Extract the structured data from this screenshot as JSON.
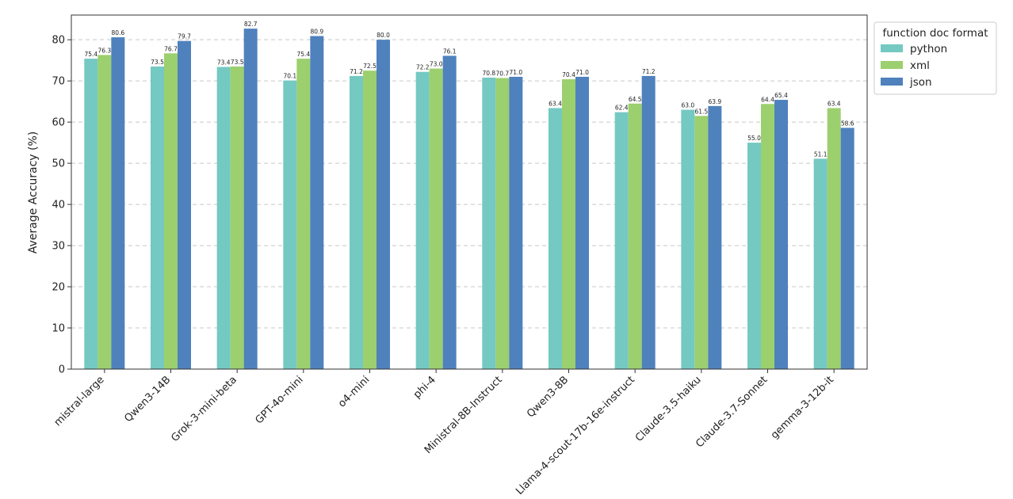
{
  "chart_data": {
    "type": "bar",
    "ylabel": "Average Accuracy (%)",
    "ylim": [
      0,
      86
    ],
    "yticks": [
      0,
      10,
      20,
      30,
      40,
      50,
      60,
      70,
      80
    ],
    "grid": "y-dashed",
    "legend_title": "function doc format",
    "legend_position": "outside-top-right",
    "categories": [
      "mistral-large",
      "Qwen3-14B",
      "Grok-3-mini-beta",
      "GPT-4o-mini",
      "o4-mini",
      "phi-4",
      "Ministral-8B-Instruct",
      "Qwen3-8B",
      "Llama-4-scout-17b-16e-instruct",
      "Claude-3.5-haiku",
      "Claude-3.7-Sonnet",
      "gemma-3-12b-it"
    ],
    "series": [
      {
        "name": "python",
        "color": "#74c9c2",
        "values": [
          75.4,
          73.5,
          73.4,
          70.1,
          71.2,
          72.2,
          70.8,
          63.4,
          62.4,
          63.0,
          55.0,
          51.1
        ]
      },
      {
        "name": "xml",
        "color": "#9ccf6e",
        "values": [
          76.3,
          76.7,
          73.5,
          75.4,
          72.5,
          73.0,
          70.7,
          70.4,
          64.5,
          61.5,
          64.4,
          63.4
        ]
      },
      {
        "name": "json",
        "color": "#4f81bd",
        "values": [
          80.6,
          79.7,
          82.7,
          80.9,
          80.0,
          76.1,
          71.0,
          71.0,
          71.2,
          63.9,
          65.4,
          58.6
        ]
      }
    ]
  }
}
